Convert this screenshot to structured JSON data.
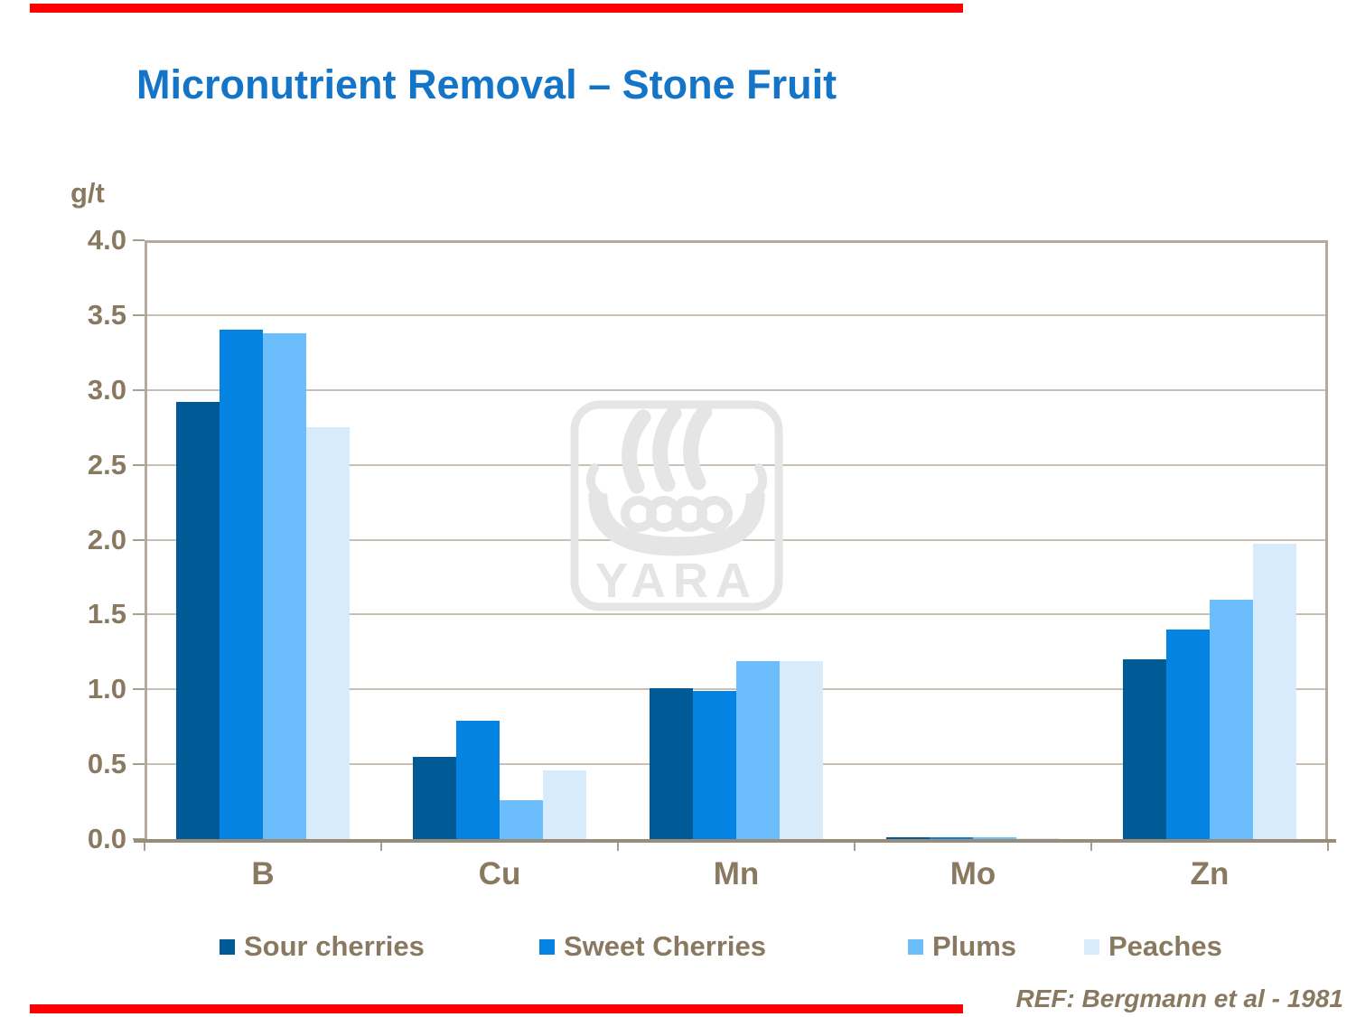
{
  "slide": {
    "title": "Micronutrient Removal – Stone Fruit",
    "ref_note": "REF: Bergmann et al - 1981"
  },
  "watermark": {
    "brand": "YARA",
    "icon": "viking-ship-icon"
  },
  "colors": {
    "title_blue": "#1474C8",
    "axis_text_brown": "#8A7961",
    "gridline": "#C9C0B3",
    "plot_border": "#B3AA9D",
    "baseline": "#9A8C7B",
    "red_accent_bar": "#FF0000",
    "watermark_gray": "#E5E5E5"
  },
  "chart_data": {
    "type": "bar",
    "title": "Micronutrient Removal – Stone Fruit",
    "xlabel": "",
    "ylabel": "g/t",
    "ylim": [
      0.0,
      4.0
    ],
    "ytick_step": 0.5,
    "yticks": [
      "4.0",
      "3.5",
      "3.0",
      "2.5",
      "2.0",
      "1.5",
      "1.0",
      "0.5",
      "0.0"
    ],
    "grid": true,
    "legend_position": "bottom",
    "categories": [
      "B",
      "Cu",
      "Mn",
      "Mo",
      "Zn"
    ],
    "series": [
      {
        "name": "Sour cherries",
        "color": "#005A96",
        "values": [
          2.92,
          0.55,
          1.01,
          0.01,
          1.2
        ]
      },
      {
        "name": "Sweet Cherries",
        "color": "#0583E3",
        "values": [
          3.4,
          0.79,
          0.99,
          0.01,
          1.4
        ]
      },
      {
        "name": "Plums",
        "color": "#6CBDFB",
        "values": [
          3.38,
          0.26,
          1.19,
          0.01,
          1.6
        ]
      },
      {
        "name": "Peaches",
        "color": "#D8EBFB",
        "values": [
          2.75,
          0.46,
          1.19,
          0.005,
          1.97
        ]
      }
    ]
  }
}
